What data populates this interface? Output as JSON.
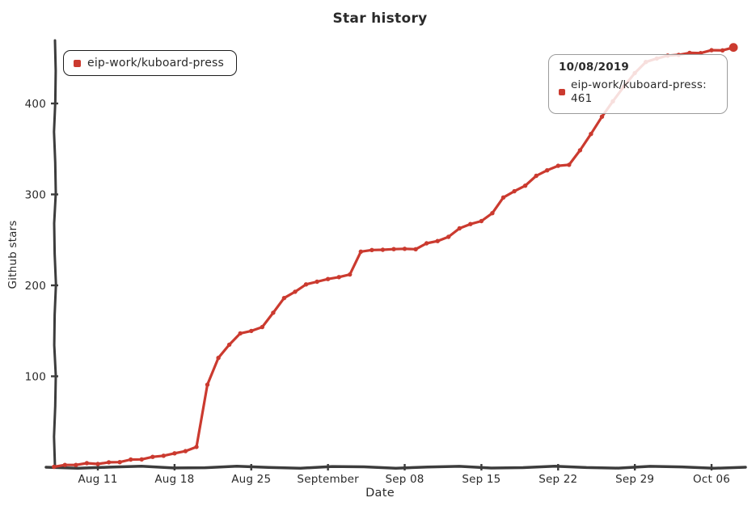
{
  "title": "Star history",
  "legend": {
    "label": "eip-work/kuboard-press"
  },
  "tooltip": {
    "date": "10/08/2019",
    "text": "eip-work/kuboard-press: 461"
  },
  "colors": {
    "accent": "#cb3a2f",
    "axis": "#3c3c3c"
  },
  "chart_data": {
    "type": "line",
    "title": "Star history",
    "xlabel": "Date",
    "ylabel": "Github stars",
    "legend_position": "top-left",
    "grid": false,
    "style": "hand-drawn-xkcd",
    "x_tick_labels": [
      "Aug 11",
      "Aug 18",
      "Aug 25",
      "September",
      "Sep 08",
      "Sep 15",
      "Sep 22",
      "Sep 29",
      "Oct 06"
    ],
    "y_ticks": [
      100,
      200,
      300,
      400
    ],
    "ylim": [
      0,
      470
    ],
    "series": [
      {
        "name": "eip-work/kuboard-press",
        "color": "#cb3a2f",
        "dates": [
          "2019-08-07",
          "2019-08-08",
          "2019-08-09",
          "2019-08-10",
          "2019-08-11",
          "2019-08-12",
          "2019-08-13",
          "2019-08-14",
          "2019-08-15",
          "2019-08-16",
          "2019-08-17",
          "2019-08-18",
          "2019-08-19",
          "2019-08-20",
          "2019-08-21",
          "2019-08-22",
          "2019-08-23",
          "2019-08-24",
          "2019-08-25",
          "2019-08-26",
          "2019-08-27",
          "2019-08-28",
          "2019-08-29",
          "2019-08-30",
          "2019-08-31",
          "2019-09-01",
          "2019-09-02",
          "2019-09-03",
          "2019-09-04",
          "2019-09-05",
          "2019-09-06",
          "2019-09-07",
          "2019-09-08",
          "2019-09-09",
          "2019-09-10",
          "2019-09-11",
          "2019-09-12",
          "2019-09-13",
          "2019-09-14",
          "2019-09-15",
          "2019-09-16",
          "2019-09-17",
          "2019-09-18",
          "2019-09-19",
          "2019-09-20",
          "2019-09-21",
          "2019-09-22",
          "2019-09-23",
          "2019-09-24",
          "2019-09-25",
          "2019-09-26",
          "2019-09-27",
          "2019-09-28",
          "2019-09-29",
          "2019-09-30",
          "2019-10-01",
          "2019-10-02",
          "2019-10-03",
          "2019-10-04",
          "2019-10-05",
          "2019-10-06",
          "2019-10-07",
          "2019-10-08"
        ],
        "values": [
          1,
          2,
          3,
          4,
          4,
          5,
          6,
          8,
          9,
          11,
          13,
          15,
          18,
          22,
          91,
          120,
          135,
          147,
          150,
          154,
          170,
          186,
          193,
          201,
          204,
          207,
          209,
          212,
          237,
          239,
          239,
          240,
          240,
          240,
          246,
          249,
          253,
          263,
          267,
          271,
          279,
          297,
          303,
          310,
          320,
          327,
          331,
          333,
          348,
          367,
          385,
          403,
          418,
          434,
          445,
          450,
          452,
          454,
          455,
          456,
          458,
          459,
          461
        ]
      }
    ],
    "highlighted_point": {
      "date": "10/08/2019",
      "series": "eip-work/kuboard-press",
      "value": 461
    }
  }
}
